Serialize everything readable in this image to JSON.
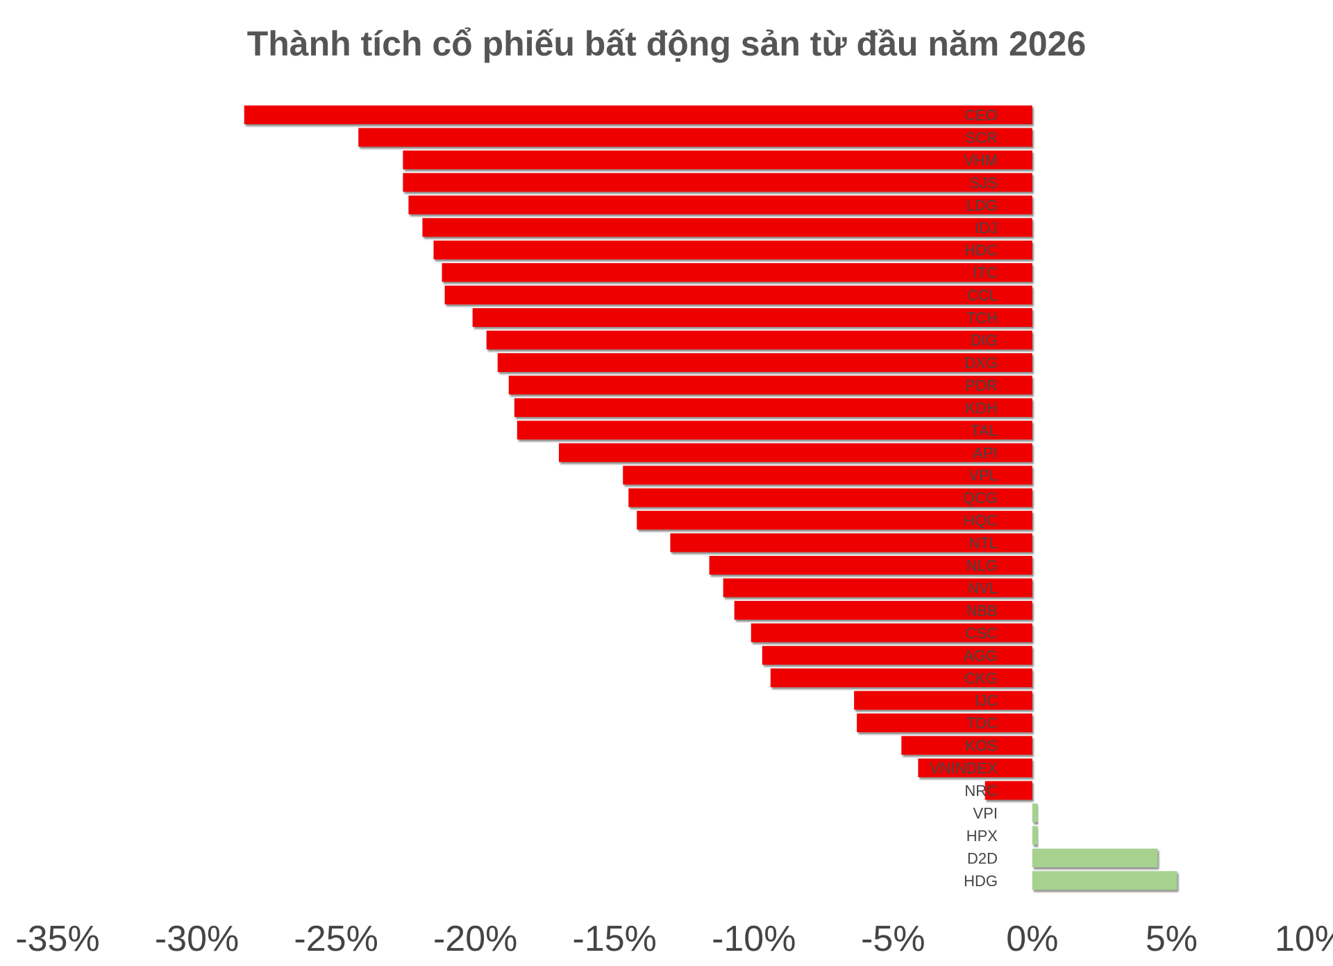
{
  "chart_data": {
    "type": "bar",
    "orientation": "horizontal",
    "title": "Thành tích cổ phiếu bất động sản từ đầu năm 2026",
    "xlabel": "",
    "ylabel": "",
    "xlim": [
      -35,
      10
    ],
    "x_ticks": [
      -35,
      -30,
      -25,
      -20,
      -15,
      -10,
      -5,
      0,
      5,
      10
    ],
    "x_tick_labels": [
      "-35%",
      "-30%",
      "-25%",
      "-20%",
      "-15%",
      "-10%",
      "-5%",
      "0%",
      "5%",
      "10%"
    ],
    "grid": false,
    "legend": "none",
    "value_unit": "%",
    "colors": {
      "negative": "#ee0000",
      "positive": "#a6d18f",
      "axis_text": "#444444",
      "title": "#555555"
    },
    "categories": [
      "CEO",
      "SCR",
      "VHM",
      "SJS",
      "LDG",
      "IDJ",
      "HDC",
      "ITC",
      "CCL",
      "TCH",
      "DIG",
      "DXG",
      "PDR",
      "KDH",
      "TAL",
      "API",
      "VPL",
      "QCG",
      "HQC",
      "NTL",
      "NLG",
      "NVL",
      "NBB",
      "CSC",
      "AGG",
      "CKG",
      "IJC",
      "TDC",
      "KOS",
      "VNINDEX",
      "NRC",
      "VPI",
      "HPX",
      "D2D",
      "HDG"
    ],
    "values": [
      -28.3,
      -24.2,
      -22.6,
      -22.6,
      -22.4,
      -21.9,
      -21.5,
      -21.2,
      -21.1,
      -20.1,
      -19.6,
      -19.2,
      -18.8,
      -18.6,
      -18.5,
      -17.0,
      -14.7,
      -14.5,
      -14.2,
      -13.0,
      -11.6,
      -11.1,
      -10.7,
      -10.1,
      -9.7,
      -9.4,
      -6.4,
      -6.3,
      -4.7,
      -4.1,
      -1.7,
      0.2,
      0.2,
      4.5,
      5.2
    ]
  }
}
